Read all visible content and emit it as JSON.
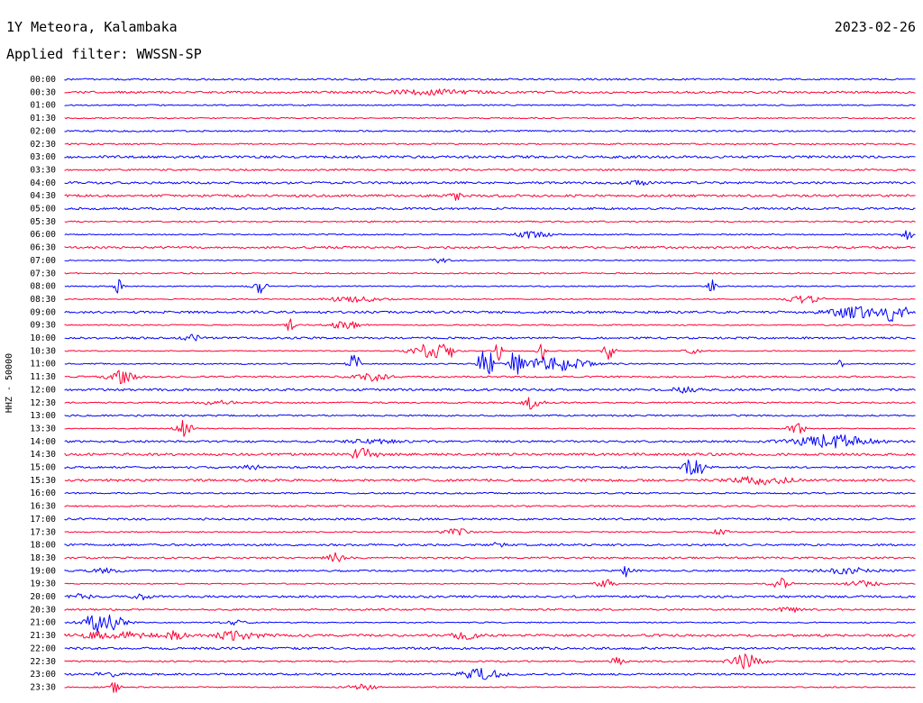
{
  "header": {
    "title": "1Y Meteora, Kalambaka",
    "date": "2023-02-26",
    "filter": "Applied filter: WWSSN-SP"
  },
  "chart_data": {
    "type": "line",
    "title": "1Y Meteora, Kalambaka",
    "ylabel": "HHZ - 50000",
    "xlabel": "",
    "trace_labels": [
      "00:00",
      "00:30",
      "01:00",
      "01:30",
      "02:00",
      "02:30",
      "03:00",
      "03:30",
      "04:00",
      "04:30",
      "05:00",
      "05:30",
      "06:00",
      "06:30",
      "07:00",
      "07:30",
      "08:00",
      "08:30",
      "09:00",
      "09:30",
      "10:00",
      "10:30",
      "11:00",
      "11:30",
      "12:00",
      "12:30",
      "13:00",
      "13:30",
      "14:00",
      "14:30",
      "15:00",
      "15:30",
      "16:00",
      "16:30",
      "17:00",
      "17:30",
      "18:00",
      "18:30",
      "19:00",
      "19:30",
      "20:00",
      "20:30",
      "21:00",
      "21:30",
      "22:00",
      "22:30",
      "23:00",
      "23:30"
    ],
    "series_colors": [
      "#0000ff",
      "#ff0033"
    ],
    "grid": false,
    "legend": "none"
  }
}
